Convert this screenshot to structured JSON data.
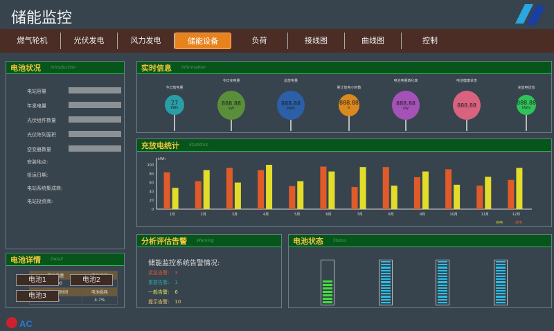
{
  "header": {
    "title": "储能监控",
    "logo": "company-logo"
  },
  "nav": {
    "items": [
      "燃气轮机",
      "光伏发电",
      "风力发电",
      "储能设备",
      "负荷",
      "接线图",
      "曲线图",
      "控制"
    ],
    "active": 3
  },
  "battery_status": {
    "title": "电池状况",
    "subtitle": "Introduction",
    "fields": [
      "电站容量",
      "年发电量",
      "光伏组件数量",
      "光伏阵列面积",
      "逆变器数量"
    ],
    "info": [
      "安装地点:",
      "投运日期:",
      "电站系统集成商:",
      "电站投资商:"
    ],
    "table": {
      "h1": [
        "剩余电量",
        "电池温度"
      ],
      "r1": [
        "40000",
        "30℃"
      ],
      "h2": [
        "预计可用时间",
        "电池损耗"
      ],
      "r2": [
        "10h",
        "4.7%"
      ]
    }
  },
  "realtime": {
    "title": "实时信息",
    "subtitle": "Information",
    "items": [
      {
        "label": "今日放电量",
        "value": "27",
        "unit": "KWh",
        "color": "#2a9ea6"
      },
      {
        "label": "今日充电量",
        "value": "888.88",
        "unit": "kW",
        "color": "#5a8f3a"
      },
      {
        "label": "总放电量",
        "value": "888.88",
        "unit": "MWh",
        "color": "#2b5fa8"
      },
      {
        "label": "累计放电小时数",
        "value": "888.88",
        "unit": "h",
        "color": "#d9891e"
      },
      {
        "label": "电池电量转化率",
        "value": "888.88",
        "unit": "kW",
        "color": "#a552b8"
      },
      {
        "label": "电池健康状态",
        "value": "888.88",
        "unit": "",
        "color": "#d9627e"
      },
      {
        "label": "充放电状态",
        "value": "888.88",
        "unit": "kW/s",
        "color": "#2fc45a"
      }
    ]
  },
  "stats": {
    "title": "充放电统计",
    "subtitle": "Statistics"
  },
  "chart_data": {
    "type": "bar",
    "ylabel": "kWh",
    "ylim": [
      0,
      100
    ],
    "yticks": [
      0,
      20,
      40,
      60,
      80,
      100
    ],
    "categories": [
      "1月",
      "2月",
      "3月",
      "4月",
      "5月",
      "6月",
      "7月",
      "8月",
      "9月",
      "10月",
      "11月",
      "12月"
    ],
    "series": [
      {
        "name": "放电",
        "color": "#e05a2a",
        "values": [
          83,
          63,
          93,
          88,
          52,
          96,
          50,
          95,
          72,
          90,
          53,
          66
        ]
      },
      {
        "name": "充电",
        "color": "#e2dc2a",
        "values": [
          48,
          88,
          60,
          100,
          63,
          85,
          95,
          53,
          85,
          55,
          73,
          93
        ]
      }
    ],
    "legend": [
      "充电",
      "放电"
    ],
    "legend_position": "bottom-right"
  },
  "alarm": {
    "title": "分析评估告警",
    "subtitle": "Warning",
    "heading": "储能监控系统告警情况:",
    "items": [
      {
        "label": "紧急告警:",
        "count": "3",
        "color": "#d9553a"
      },
      {
        "label": "重要告警:",
        "count": "1",
        "color": "#2aa6a6"
      },
      {
        "label": "一般告警:",
        "count": "6",
        "color": "#e8e060"
      },
      {
        "label": "提示告警:",
        "count": "10",
        "color": "#e8c070"
      }
    ]
  },
  "cell_state": {
    "title": "电池状态",
    "subtitle": "Status",
    "levels": [
      0.45,
      1,
      1,
      1
    ]
  },
  "detail": {
    "title": "电池详情",
    "subtitle": "Detail",
    "buttons": [
      "电池1",
      "电池2",
      "电池3"
    ]
  }
}
